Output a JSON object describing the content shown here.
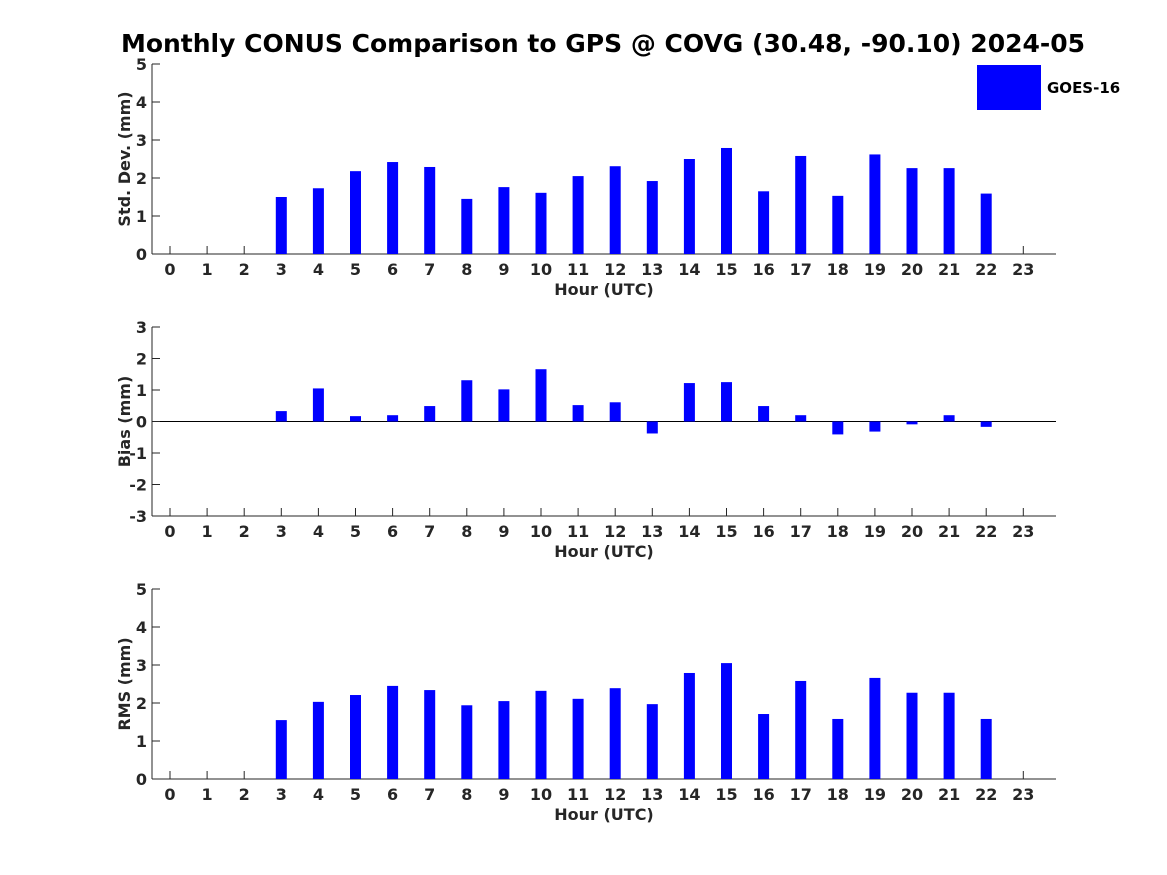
{
  "title": "Monthly CONUS Comparison to GPS @ COVG (30.48, -90.10) 2024-05",
  "legend": {
    "label": "GOES-16",
    "color": "#0000ff",
    "placement": "top-right"
  },
  "bar_color": "#0000ff",
  "chart_data": [
    {
      "type": "bar",
      "panel": "std",
      "series": [
        {
          "name": "GOES-16",
          "values": [
            null,
            null,
            null,
            1.5,
            1.73,
            2.18,
            2.42,
            2.29,
            1.45,
            1.76,
            1.61,
            2.05,
            2.31,
            1.92,
            2.5,
            2.79,
            1.65,
            2.58,
            1.53,
            2.62,
            2.26,
            2.26,
            1.59,
            null
          ]
        }
      ],
      "categories": [
        "0",
        "1",
        "2",
        "3",
        "4",
        "5",
        "6",
        "7",
        "8",
        "9",
        "10",
        "11",
        "12",
        "13",
        "14",
        "15",
        "16",
        "17",
        "18",
        "19",
        "20",
        "21",
        "22",
        "23"
      ],
      "ylabel": "Std. Dev. (mm)",
      "xlabel": "Hour (UTC)",
      "ylim": [
        0,
        5
      ],
      "yticks": [
        "0",
        "1",
        "2",
        "3",
        "4",
        "5"
      ],
      "grid": false
    },
    {
      "type": "bar",
      "panel": "bias",
      "series": [
        {
          "name": "GOES-16",
          "values": [
            null,
            null,
            null,
            0.33,
            1.05,
            0.17,
            0.2,
            0.49,
            1.31,
            1.02,
            1.66,
            0.52,
            0.61,
            -0.38,
            1.22,
            1.25,
            0.49,
            0.2,
            -0.41,
            -0.32,
            -0.09,
            0.2,
            -0.17,
            null
          ]
        }
      ],
      "categories": [
        "0",
        "1",
        "2",
        "3",
        "4",
        "5",
        "6",
        "7",
        "8",
        "9",
        "10",
        "11",
        "12",
        "13",
        "14",
        "15",
        "16",
        "17",
        "18",
        "19",
        "20",
        "21",
        "22",
        "23"
      ],
      "ylabel": "Bias (mm)",
      "xlabel": "Hour (UTC)",
      "ylim": [
        -3,
        3
      ],
      "yticks": [
        "-3",
        "-2",
        "-1",
        "0",
        "1",
        "2",
        "3"
      ],
      "grid": false
    },
    {
      "type": "bar",
      "panel": "rms",
      "series": [
        {
          "name": "GOES-16",
          "values": [
            null,
            null,
            null,
            1.55,
            2.03,
            2.21,
            2.45,
            2.34,
            1.94,
            2.05,
            2.32,
            2.11,
            2.39,
            1.97,
            2.79,
            3.05,
            1.71,
            2.58,
            1.58,
            2.66,
            2.27,
            2.27,
            1.58,
            null
          ]
        }
      ],
      "categories": [
        "0",
        "1",
        "2",
        "3",
        "4",
        "5",
        "6",
        "7",
        "8",
        "9",
        "10",
        "11",
        "12",
        "13",
        "14",
        "15",
        "16",
        "17",
        "18",
        "19",
        "20",
        "21",
        "22",
        "23"
      ],
      "ylabel": "RMS (mm)",
      "xlabel": "Hour (UTC)",
      "ylim": [
        0,
        5
      ],
      "yticks": [
        "0",
        "1",
        "2",
        "3",
        "4",
        "5"
      ],
      "grid": false
    }
  ]
}
